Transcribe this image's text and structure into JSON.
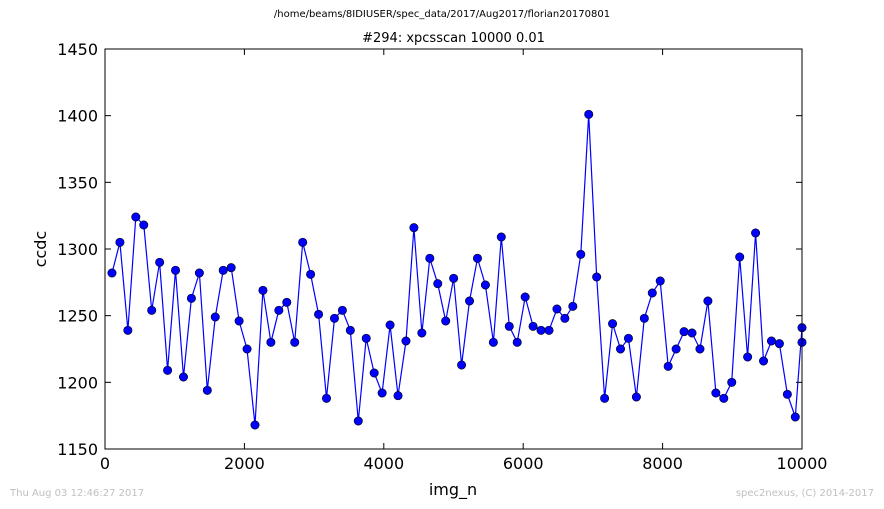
{
  "header": {
    "path": "/home/beams/8IDIUSER/spec_data/2017/Aug2017/florian20170801",
    "scan_title": "#294: xpcsscan 10000 0.01"
  },
  "footer": {
    "timestamp": "Thu Aug 03 12:46:27 2017",
    "credit": "spec2nexus, (C) 2014-2017"
  },
  "chart_data": {
    "type": "line",
    "title": "#294: xpcsscan 10000 0.01",
    "xlabel": "img_n",
    "ylabel": "ccdc",
    "xlim": [
      0,
      10000
    ],
    "ylim": [
      1150,
      1450
    ],
    "xticks": [
      "0",
      "2000",
      "4000",
      "6000",
      "8000",
      "10000"
    ],
    "yticks": [
      "1150",
      "1200",
      "1250",
      "1300",
      "1350",
      "1400",
      "1450"
    ],
    "grid": false,
    "marker": "circle",
    "color": "#0000ff",
    "x": [
      100,
      214,
      328,
      442,
      556,
      670,
      784,
      898,
      1012,
      1126,
      1240,
      1354,
      1468,
      1582,
      1696,
      1810,
      1924,
      2038,
      2152,
      2266,
      2380,
      2494,
      2608,
      2722,
      2836,
      2950,
      3064,
      3178,
      3292,
      3406,
      3520,
      3634,
      3748,
      3862,
      3976,
      4090,
      4204,
      4318,
      4432,
      4546,
      4660,
      4774,
      4888,
      5002,
      5116,
      5230,
      5344,
      5458,
      5572,
      5686,
      5800,
      5914,
      6028,
      6142,
      6256,
      6370,
      6484,
      6598,
      6712,
      6826,
      6940,
      7054,
      7168,
      7282,
      7396,
      7510,
      7624,
      7738,
      7852,
      7966,
      8080,
      8194,
      8308,
      8422,
      8536,
      8650,
      8764,
      8878,
      8992,
      9106,
      9220,
      9334,
      9448,
      9562,
      9676,
      9790,
      9904,
      10000,
      10000
    ],
    "y": [
      1282,
      1305,
      1239,
      1324,
      1318,
      1254,
      1290,
      1209,
      1284,
      1204,
      1263,
      1282,
      1194,
      1249,
      1284,
      1286,
      1246,
      1225,
      1168,
      1269,
      1230,
      1254,
      1260,
      1230,
      1305,
      1281,
      1251,
      1188,
      1248,
      1254,
      1239,
      1171,
      1233,
      1207,
      1192,
      1243,
      1190,
      1231,
      1316,
      1237,
      1293,
      1274,
      1246,
      1278,
      1213,
      1261,
      1293,
      1273,
      1230,
      1309,
      1242,
      1230,
      1264,
      1242,
      1239,
      1239,
      1255,
      1248,
      1257,
      1296,
      1401,
      1279,
      1188,
      1244,
      1225,
      1233,
      1189,
      1248,
      1267,
      1276,
      1212,
      1225,
      1238,
      1237,
      1225,
      1261,
      1192,
      1188,
      1200,
      1294,
      1219,
      1312,
      1216,
      1231,
      1229,
      1191,
      1174,
      1241,
      1230
    ]
  }
}
